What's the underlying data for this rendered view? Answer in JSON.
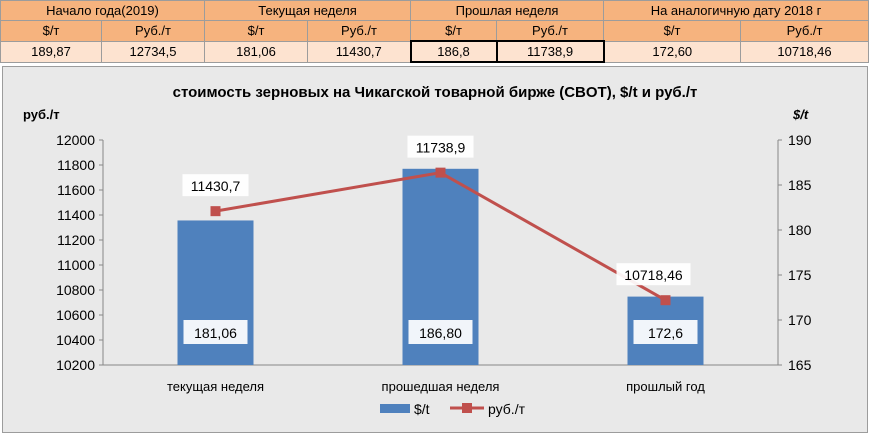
{
  "summary_table": {
    "groups": [
      {
        "title": "Начало года(2019)",
        "usd_header": "$/т",
        "rub_header": "Руб./т",
        "usd": "189,87",
        "rub": "12734,5"
      },
      {
        "title": "Текущая неделя",
        "usd_header": "$/т",
        "rub_header": "Руб./т",
        "usd": "181,06",
        "rub": "11430,7"
      },
      {
        "title": "Прошлая неделя",
        "usd_header": "$/т",
        "rub_header": "Руб./т",
        "usd": "186,8",
        "rub": "11738,9"
      },
      {
        "title": "На аналогичную дату 2018 г",
        "usd_header": "$/т",
        "rub_header": "Руб./т",
        "usd": "172,60",
        "rub": "10718,46"
      }
    ]
  },
  "chart_data": {
    "type": "bar",
    "title": "стоимость зерновых на Чикагской товарной бирже (CBOT), $/t и руб./т",
    "ylabel_left": "руб./т",
    "ylabel_right": "$/t",
    "categories": [
      "текущая неделя",
      "прошедшая неделя",
      "прошлый год"
    ],
    "ylim_left": [
      10200,
      12000
    ],
    "ylim_right": [
      165,
      190
    ],
    "left_ticks": [
      "10200",
      "10400",
      "10600",
      "10800",
      "11000",
      "11200",
      "11400",
      "11600",
      "11800",
      "12000"
    ],
    "right_ticks": [
      "165",
      "170",
      "175",
      "180",
      "185",
      "190"
    ],
    "grid": false,
    "legend_position": "bottom",
    "series": [
      {
        "name": "$/t",
        "type": "bar",
        "axis": "right",
        "values": [
          181.06,
          186.8,
          172.6
        ],
        "labels": [
          "181,06",
          "186,80",
          "172,6"
        ],
        "color": "#4f81bd"
      },
      {
        "name": "руб./т",
        "type": "line",
        "axis": "left",
        "values": [
          11430.7,
          11738.9,
          10718.46
        ],
        "labels": [
          "11430,7",
          "11738,9",
          "10718,46"
        ],
        "color": "#c0504d"
      }
    ]
  }
}
